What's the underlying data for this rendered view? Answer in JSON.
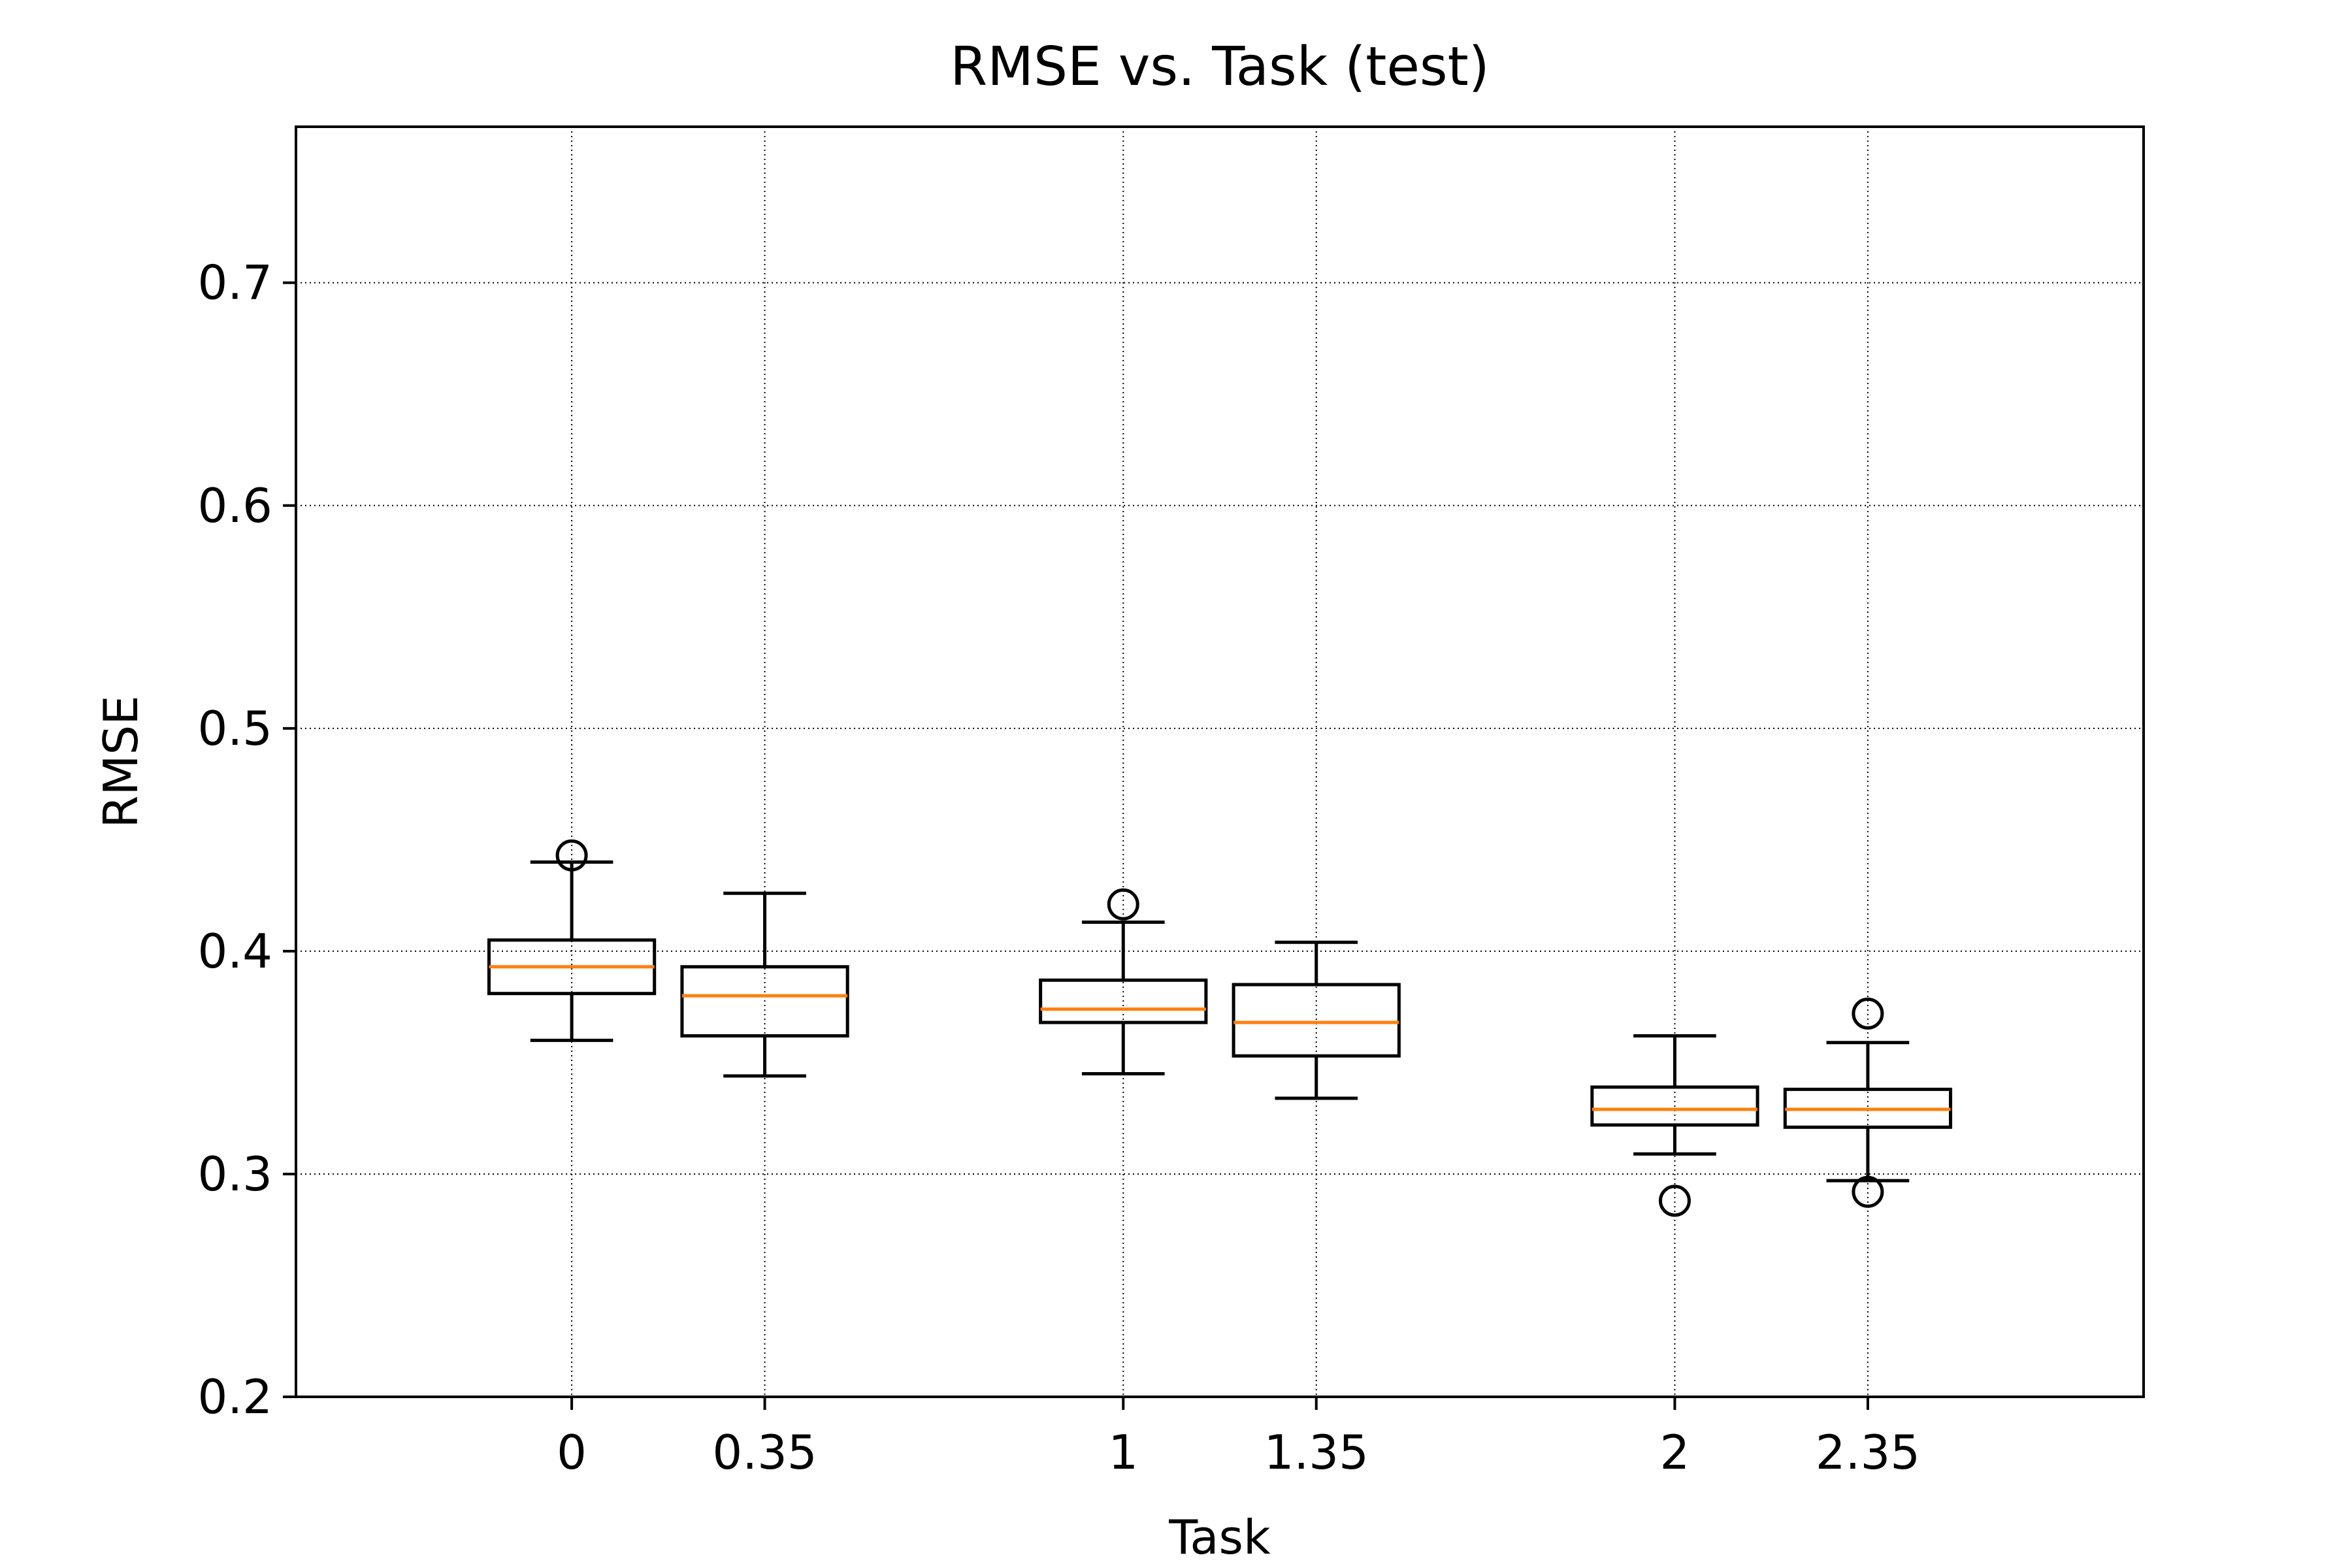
{
  "chart_data": {
    "type": "boxplot",
    "title": "RMSE vs. Task (test)",
    "xlabel": "Task",
    "ylabel": "RMSE",
    "xlim": [
      -0.5,
      2.85
    ],
    "ylim": [
      0.2,
      0.77
    ],
    "yticks": [
      0.2,
      0.3,
      0.4,
      0.5,
      0.6,
      0.7
    ],
    "ytick_labels": [
      "0.2",
      "0.3",
      "0.4",
      "0.5",
      "0.6",
      "0.7"
    ],
    "xticks": [
      0,
      0.35,
      1,
      1.35,
      2,
      2.35
    ],
    "xtick_labels": [
      "0",
      "0.35",
      "1",
      "1.35",
      "2",
      "2.35"
    ],
    "grid": true,
    "box_half_width": 0.15,
    "colors": {
      "box": "#000000",
      "median": "#ff7f0e",
      "grid": "#000000"
    },
    "boxes": [
      {
        "x": 0,
        "whisker_low": 0.36,
        "q1": 0.381,
        "median": 0.393,
        "q3": 0.405,
        "whisker_high": 0.44,
        "outliers": [
          0.443
        ]
      },
      {
        "x": 0.35,
        "whisker_low": 0.344,
        "q1": 0.362,
        "median": 0.38,
        "q3": 0.393,
        "whisker_high": 0.426,
        "outliers": []
      },
      {
        "x": 1,
        "whisker_low": 0.345,
        "q1": 0.368,
        "median": 0.374,
        "q3": 0.387,
        "whisker_high": 0.413,
        "outliers": [
          0.421
        ]
      },
      {
        "x": 1.35,
        "whisker_low": 0.334,
        "q1": 0.353,
        "median": 0.368,
        "q3": 0.385,
        "whisker_high": 0.404,
        "outliers": []
      },
      {
        "x": 2,
        "whisker_low": 0.309,
        "q1": 0.322,
        "median": 0.329,
        "q3": 0.339,
        "whisker_high": 0.362,
        "outliers": [
          0.288
        ]
      },
      {
        "x": 2.35,
        "whisker_low": 0.297,
        "q1": 0.321,
        "median": 0.329,
        "q3": 0.338,
        "whisker_high": 0.359,
        "outliers": [
          0.372,
          0.292
        ]
      }
    ]
  }
}
